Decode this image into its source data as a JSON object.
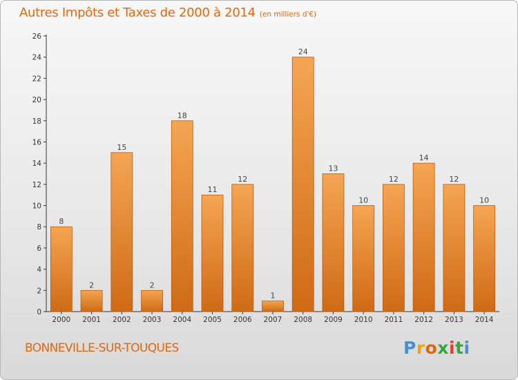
{
  "chart_data": {
    "type": "bar",
    "title": "Autres Impôts et Taxes de 2000 à 2014",
    "subtitle": "(en milliers d'€)",
    "xlabel": "",
    "ylabel": "",
    "categories": [
      "2000",
      "2001",
      "2002",
      "2003",
      "2004",
      "2005",
      "2006",
      "2007",
      "2008",
      "2009",
      "2010",
      "2011",
      "2012",
      "2013",
      "2014"
    ],
    "values": [
      8,
      2,
      15,
      2,
      18,
      11,
      12,
      1,
      24,
      13,
      10,
      12,
      14,
      12,
      10
    ],
    "ylim": [
      0,
      26
    ],
    "yticks": [
      0,
      2,
      4,
      6,
      8,
      10,
      12,
      14,
      16,
      18,
      20,
      22,
      24,
      26
    ],
    "grid": false,
    "legend": "none",
    "bar_color_top": "#f5a553",
    "bar_color_bottom": "#cf6a16",
    "bar_border": "#b65a10"
  },
  "commune_name": "BONNEVILLE-SUR-TOUQUES",
  "logo": {
    "letters": [
      "P",
      "r",
      "o",
      "x",
      "i",
      "t",
      "i"
    ],
    "colors": [
      "#4a8fd0",
      "#f0a21a",
      "#e2670b",
      "#3aa63a",
      "#e23c3c",
      "#3aa63a",
      "#4a8fd0"
    ]
  },
  "colors": {
    "title": "#e2670b",
    "axis": "#333333"
  }
}
